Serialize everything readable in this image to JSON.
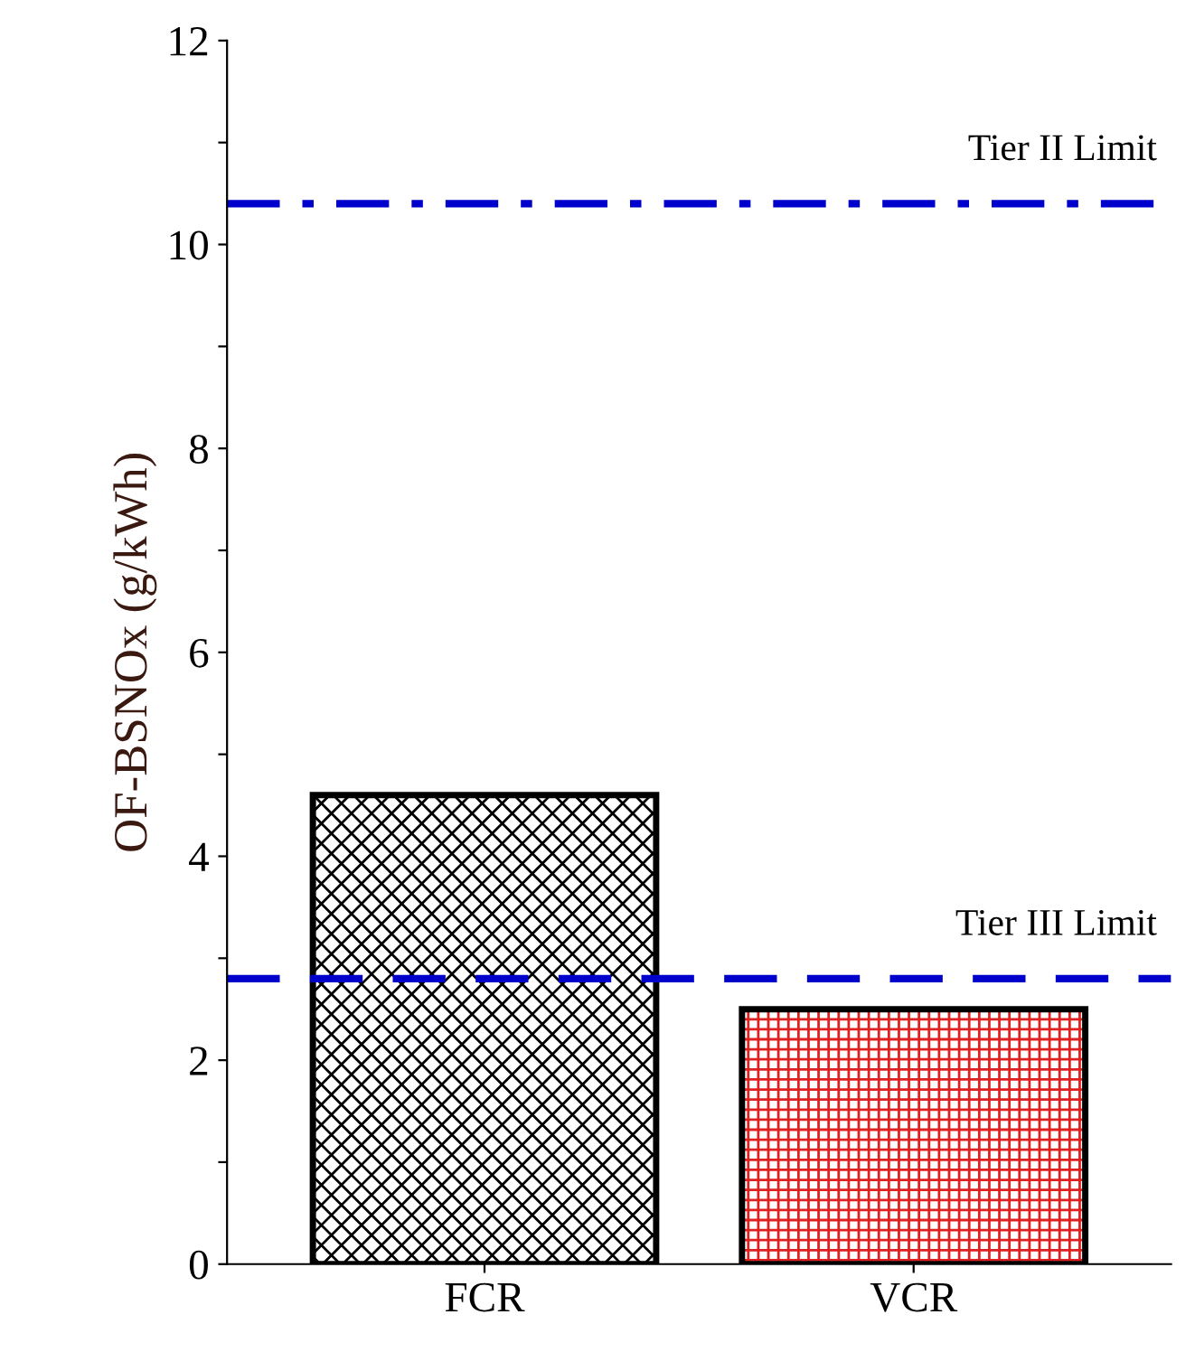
{
  "chart_data": {
    "type": "bar",
    "ylabel": "OF-BSNOx (g/kWh)",
    "categories": [
      "FCR",
      "VCR"
    ],
    "values": [
      4.6,
      2.5
    ],
    "colors": [
      "#000000",
      "#e02020"
    ],
    "ylim": [
      0,
      12
    ],
    "yticks": [
      0,
      {
        "value": 1,
        "label": null
      },
      2,
      {
        "value": 3,
        "label": null
      },
      4,
      {
        "value": 5,
        "label": null
      },
      6,
      {
        "value": 7,
        "label": null
      },
      8,
      {
        "value": 9,
        "label": null
      },
      10,
      {
        "value": 11,
        "label": null
      },
      12
    ],
    "ref_lines": [
      {
        "axis": "y",
        "value": 10.4,
        "label": "Tier II Limit",
        "color": "#0000cc",
        "line_style": "dashdot"
      },
      {
        "axis": "y",
        "value": 2.8,
        "label": "Tier III Limit",
        "color": "#0000cc",
        "line_style": "dashed"
      }
    ],
    "grid": false
  }
}
